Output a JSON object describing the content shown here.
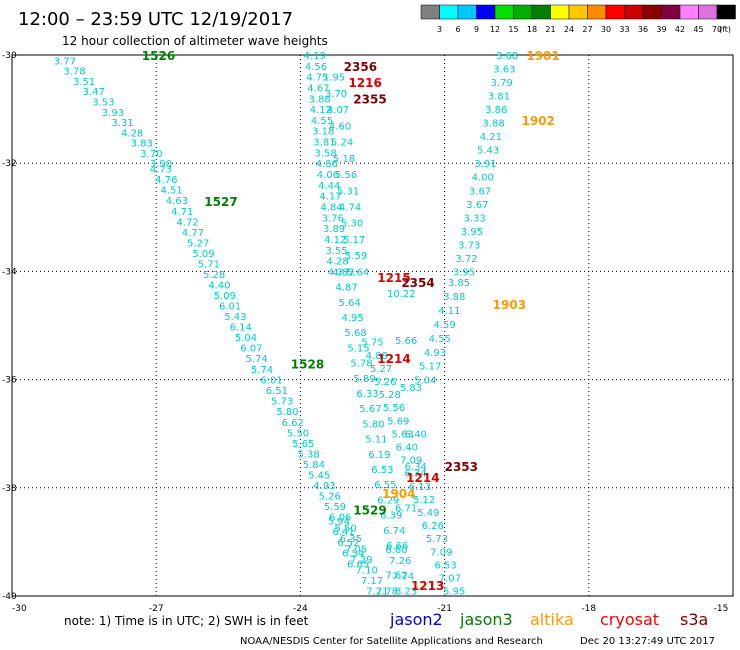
{
  "header": {
    "title": "12:00 – 23:59 UTC 12/19/2017",
    "subtitle": "12 hour collection of altimeter wave heights"
  },
  "colorbar": {
    "labels": [
      "3",
      "6",
      "9",
      "12",
      "15",
      "18",
      "21",
      "24",
      "27",
      "30",
      "33",
      "36",
      "39",
      "42",
      "45",
      "70",
      "(ft)"
    ],
    "colors": [
      "#808080",
      "#00ffff",
      "#00c8ff",
      "#0000ff",
      "#00e000",
      "#00b000",
      "#008000",
      "#ffff00",
      "#ffc800",
      "#ff8c00",
      "#ff0000",
      "#c80000",
      "#8b0000",
      "#800040",
      "#ff80ff",
      "#e070e0",
      "#000000"
    ]
  },
  "footer": {
    "note": "note:  1) Time is in UTC;  2) SWH is in feet",
    "credit": "NOAA/NESDIS Center for Satellite Applications and Research",
    "timestamp": "Dec 20 13:27:49 UTC 2017"
  },
  "satellites": [
    {
      "name": "jason2",
      "color": "#0000dd"
    },
    {
      "name": "jason3",
      "color": "#008000"
    },
    {
      "name": "altika",
      "color": "#ff9900"
    },
    {
      "name": "cryosat",
      "color": "#ff0000"
    },
    {
      "name": "s3a",
      "color": "#800000"
    }
  ],
  "chart_data": {
    "type": "scatter",
    "title": "12:00 – 23:59 UTC 12/19/2017",
    "subtitle": "12 hour collection of altimeter wave heights",
    "xlim": [
      -30,
      -15
    ],
    "ylim": [
      -40,
      -30
    ],
    "x_ticks": [
      -30,
      -27,
      -24,
      -21,
      -18,
      -15
    ],
    "y_ticks": [
      -30,
      -32,
      -34,
      -36,
      -38,
      -40
    ],
    "grid": true,
    "units": "ft",
    "tracks": [
      {
        "pass": "1526",
        "satellite": "jason3",
        "color": "#00cccc",
        "start": [
          -28.9,
          -30.1
        ],
        "end": [
          -26.9,
          -32.0
        ],
        "values": [
          "3.77",
          "3.78",
          "3.51",
          "3.47",
          "3.53",
          "3.93",
          "3.31",
          "4.28",
          "3.83",
          "3.70",
          "3.90"
        ]
      },
      {
        "pass": "1527",
        "satellite": "jason3",
        "color": "#00cccc",
        "start": [
          -26.9,
          -32.1
        ],
        "end": [
          -24.8,
          -35.8
        ],
        "values": [
          "4.73",
          "4.76",
          "4.51",
          "4.63",
          "4.71",
          "4.72",
          "4.77",
          "5.27",
          "5.09",
          "5.71",
          "5.28",
          "4.40",
          "5.09",
          "6.01",
          "5.43",
          "6.14",
          "5.04",
          "6.07",
          "5.74",
          "5.74"
        ]
      },
      {
        "pass": "1528",
        "satellite": "jason3",
        "color": "#00cccc",
        "start": [
          -24.6,
          -36.0
        ],
        "end": [
          -22.4,
          -39.9
        ],
        "values": [
          "6.01",
          "6.51",
          "5.73",
          "5.80",
          "6.62",
          "5.50",
          "5.65",
          "5.38",
          "5.84",
          "5.45",
          "4.93",
          "5.26",
          "5.59",
          "6.06",
          "5.50",
          "6.35",
          "7.05",
          "7.29",
          "7.10",
          "7.17",
          "7.21"
        ]
      },
      {
        "pass": "2356",
        "satellite": "s3a",
        "color": "#00cccc",
        "start": [
          -23.7,
          -30.0
        ],
        "end": [
          -23.2,
          -34.0
        ],
        "values": [
          "4.19",
          "4.56",
          "4.75",
          "4.67",
          "3.88",
          "4.12",
          "4.55",
          "3.18",
          "3.81",
          "3.58",
          "4.86",
          "4.06",
          "4.44",
          "4.17",
          "4.84",
          "3.76",
          "3.89",
          "4.12",
          "3.55",
          "4.28",
          "4.27"
        ]
      },
      {
        "pass": "1215",
        "satellite": "cryosat",
        "color": "#00cccc",
        "start": [
          -23.1,
          -34.0
        ],
        "end": [
          -21.8,
          -39.9
        ],
        "values": [
          "4.82",
          "4.87",
          "5.64",
          "4.95",
          "5.68",
          "5.15",
          "5.78",
          "5.89",
          "6.33",
          "5.67",
          "5.80",
          "5.11",
          "6.19",
          "6.53",
          "6.55",
          "6.29",
          "6.39",
          "6.74",
          "6.66",
          "7.26",
          "7.74",
          "8.23"
        ]
      },
      {
        "pass": "2355",
        "satellite": "s3a",
        "color": "#00cccc",
        "start": [
          -23.3,
          -30.4
        ],
        "end": [
          -22.8,
          -34.0
        ],
        "values": [
          "1.95",
          "3.70",
          "4.07",
          "4.60",
          "5.24",
          "5.18",
          "5.56",
          "5.31",
          "4.74",
          "5.30",
          "5.17",
          "5.59",
          "5.64"
        ]
      },
      {
        "pass": "1214",
        "satellite": "cryosat",
        "color": "#00cccc",
        "start": [
          -22.5,
          -35.3
        ],
        "end": [
          -20.8,
          -39.9
        ],
        "values": [
          "5.75",
          "4.88",
          "5.27",
          "5.26",
          "5.28",
          "5.56",
          "5.69",
          "5.63",
          "6.40",
          "7.09",
          "6.34",
          "6.13",
          "5.12",
          "5.49",
          "6.26",
          "5.73",
          "7.09",
          "6.53",
          "7.07",
          "5.95"
        ]
      },
      {
        "pass": "1901",
        "satellite": "altika",
        "color": "#00cccc",
        "start": [
          -19.7,
          -30.0
        ],
        "end": [
          -20.6,
          -34.0
        ],
        "values": [
          "3.68",
          "3.63",
          "3.79",
          "3.81",
          "3.86",
          "3.88",
          "4.21",
          "5.43",
          "3.91",
          "4.00",
          "3.67",
          "3.67",
          "3.33",
          "3.95",
          "3.73",
          "3.72",
          "3.95"
        ]
      },
      {
        "pass": "1903",
        "satellite": "altika",
        "color": "#00cccc",
        "start": [
          -20.7,
          -34.2
        ],
        "end": [
          -21.4,
          -36.0
        ],
        "values": [
          "3.85",
          "3.88",
          "4.11",
          "4.59",
          "4.55",
          "4.93",
          "5.17",
          "5.04"
        ]
      },
      {
        "pass": "2354",
        "satellite": "s3a",
        "color": "#00cccc",
        "start": [
          -21.9,
          -34.4
        ],
        "end": [
          -21.6,
          -37.0
        ],
        "values": [
          "10.22",
          "5.66",
          "5.83",
          "6.40"
        ]
      },
      {
        "pass": "2353",
        "satellite": "s3a",
        "color": "#00cccc",
        "start": [
          -21.6,
          -37.6
        ],
        "end": [
          -22.2,
          -39.9
        ],
        "values": [
          "6.34",
          "6.71",
          "6.60",
          "7.78"
        ]
      },
      {
        "pass": "1529",
        "satellite": "jason3",
        "color": "#00cccc",
        "start": [
          -23.2,
          -38.6
        ],
        "end": [
          -22.8,
          -39.4
        ],
        "values": [
          "5.94",
          "6.41",
          "6.52",
          "6.54",
          "6.65"
        ]
      },
      {
        "pass": "1213",
        "satellite": "cryosat",
        "color": "#00cccc",
        "start": [
          -22.0,
          -39.6
        ],
        "end": [
          -21.9,
          -39.9
        ],
        "values": [
          "7.62"
        ]
      },
      {
        "pass": "1902",
        "satellite": "altika",
        "color": "#00cccc",
        "start": [
          -19.7,
          -31.2
        ],
        "end": [
          -19.7,
          -31.2
        ],
        "values": []
      },
      {
        "pass": "1216",
        "satellite": "cryosat",
        "color": "#00cccc",
        "start": [
          -23.1,
          -30.4
        ],
        "end": [
          -23.1,
          -30.4
        ],
        "values": []
      },
      {
        "pass": "1904",
        "satellite": "altika",
        "color": "#00cccc",
        "start": [
          -22.2,
          -38.2
        ],
        "end": [
          -22.2,
          -38.2
        ],
        "values": []
      }
    ],
    "pass_labels": [
      {
        "text": "1526",
        "x": -27.3,
        "y": -30.0,
        "color": "#008000"
      },
      {
        "text": "1527",
        "x": -26.0,
        "y": -32.7,
        "color": "#008000"
      },
      {
        "text": "1528",
        "x": -24.2,
        "y": -35.7,
        "color": "#008000"
      },
      {
        "text": "1529",
        "x": -22.9,
        "y": -38.4,
        "color": "#008000"
      },
      {
        "text": "2356",
        "x": -23.1,
        "y": -30.2,
        "color": "#800000"
      },
      {
        "text": "1216",
        "x": -23.0,
        "y": -30.5,
        "color": "#dd0000"
      },
      {
        "text": "2355",
        "x": -22.9,
        "y": -30.8,
        "color": "#800000"
      },
      {
        "text": "1215",
        "x": -22.4,
        "y": -34.1,
        "color": "#dd0000"
      },
      {
        "text": "2354",
        "x": -21.9,
        "y": -34.2,
        "color": "#800000"
      },
      {
        "text": "1214",
        "x": -22.4,
        "y": -35.6,
        "color": "#dd0000"
      },
      {
        "text": "2353",
        "x": -21.0,
        "y": -37.6,
        "color": "#800000"
      },
      {
        "text": "1214",
        "x": -21.8,
        "y": -37.8,
        "color": "#dd0000"
      },
      {
        "text": "1213",
        "x": -21.7,
        "y": -39.8,
        "color": "#dd0000"
      },
      {
        "text": "1901",
        "x": -19.3,
        "y": -30.0,
        "color": "#ff9900"
      },
      {
        "text": "1902",
        "x": -19.4,
        "y": -31.2,
        "color": "#ff9900"
      },
      {
        "text": "1903",
        "x": -20.0,
        "y": -34.6,
        "color": "#ff9900"
      },
      {
        "text": "1904",
        "x": -22.3,
        "y": -38.1,
        "color": "#ff9900"
      }
    ]
  }
}
